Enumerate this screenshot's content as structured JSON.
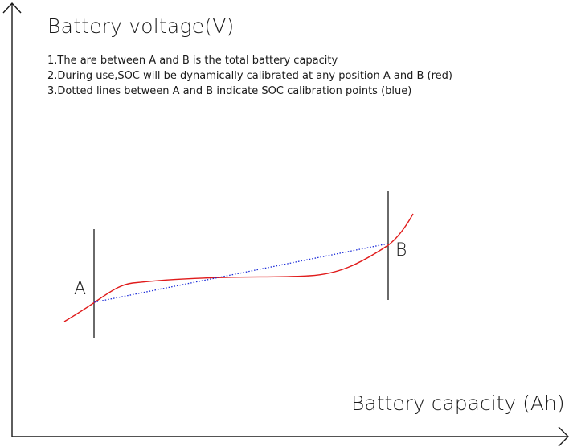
{
  "y_axis_title": "Battery voltage(V)",
  "x_axis_title": "Battery capacity (Ah)",
  "notes": [
    "1.The are between A and B is the total battery capacity",
    "2.During use,SOC will be dynamically calibrated at any position A and B (red)",
    "3.Dotted lines between A and B indicate SOC calibration points (blue)"
  ],
  "markers": [
    {
      "label": "A"
    },
    {
      "label": "B"
    }
  ],
  "colors": {
    "axis": "#1a1a1a",
    "voltage_curve": "#e01b1b",
    "calibration_line": "#1a2bd8",
    "marker_line": "#1a1a1a"
  }
}
